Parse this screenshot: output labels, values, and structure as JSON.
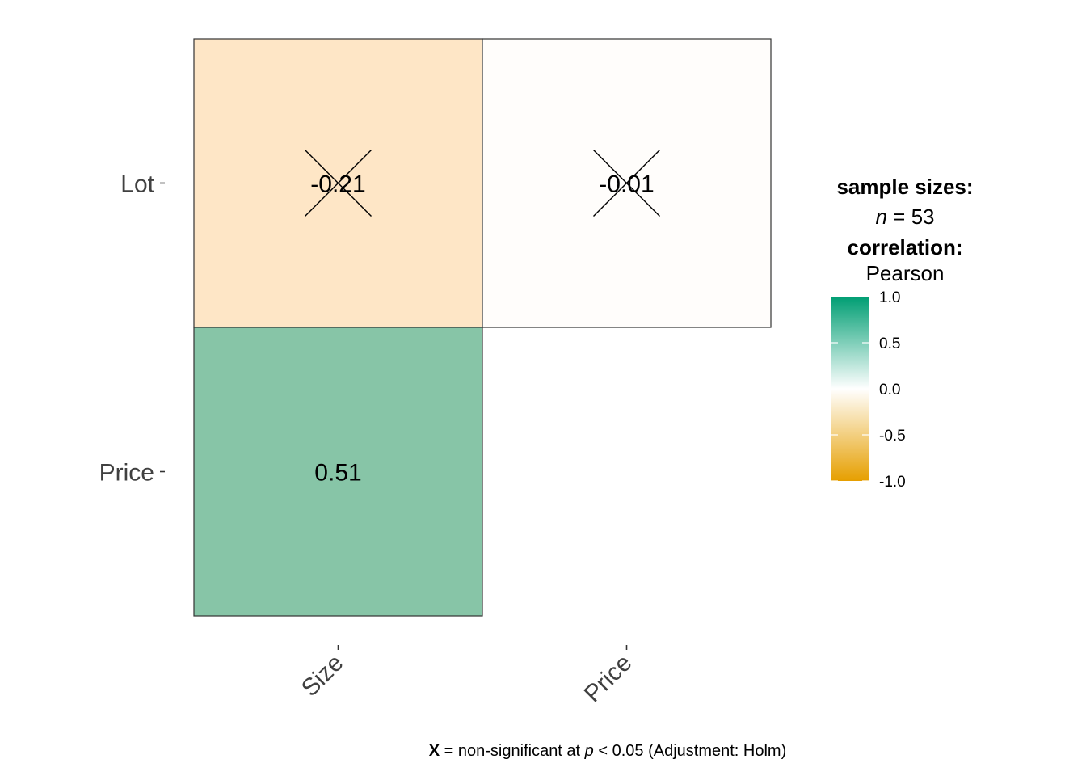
{
  "chart_data": {
    "type": "heatmap",
    "x_categories": [
      "Size",
      "Price"
    ],
    "y_categories": [
      "Lot",
      "Price"
    ],
    "cells": [
      {
        "x": "Size",
        "y": "Lot",
        "value": -0.21,
        "label": "-0.21",
        "significant": false,
        "color": "#FEE6C6"
      },
      {
        "x": "Price",
        "y": "Lot",
        "value": -0.01,
        "label": "-0.01",
        "significant": false,
        "color": "#FFFDFB"
      },
      {
        "x": "Size",
        "y": "Price",
        "value": 0.51,
        "label": "0.51",
        "significant": true,
        "color": "#87C5A7"
      }
    ],
    "legend": {
      "title_sample": "sample sizes:",
      "n_symbol": "n",
      "n_text": " = 53",
      "title_correlation": "correlation:",
      "method": "Pearson",
      "ticks": [
        {
          "value": 1.0,
          "label": "1.0"
        },
        {
          "value": 0.5,
          "label": "0.5"
        },
        {
          "value": 0.0,
          "label": "0.0"
        },
        {
          "value": -0.5,
          "label": "-0.5"
        },
        {
          "value": -1.0,
          "label": "-1.0"
        }
      ],
      "range": [
        -1,
        1
      ],
      "colors": {
        "low": "#E69F00",
        "mid": "#FFFFFF",
        "high": "#009E73"
      }
    },
    "caption": {
      "symbol": "X",
      "text1": " = non-significant at ",
      "p": "p",
      "text2": " < 0.05 (Adjustment: Holm)"
    }
  }
}
